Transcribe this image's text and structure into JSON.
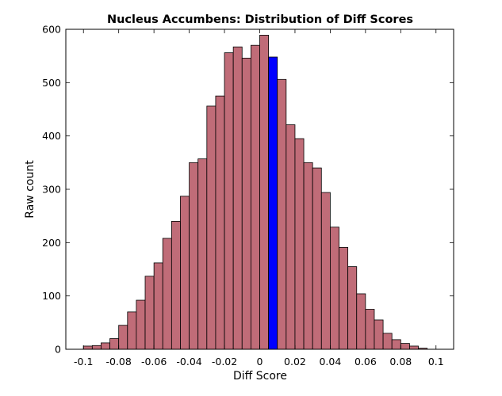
{
  "chart_data": {
    "type": "bar",
    "title": "Nucleus Accumbens: Distribution of Diff Scores",
    "xlabel": "Diff Score",
    "ylabel": "Raw count",
    "xlim": [
      -0.11,
      0.11
    ],
    "ylim": [
      0,
      600
    ],
    "xticks": [
      -0.1,
      -0.08,
      -0.06,
      -0.04,
      -0.02,
      0,
      0.02,
      0.04,
      0.06,
      0.08,
      0.1
    ],
    "xtick_labels": [
      "-0.1",
      "-0.08",
      "-0.06",
      "-0.04",
      "-0.02",
      "0",
      "0.02",
      "0.04",
      "0.06",
      "0.08",
      "0.1"
    ],
    "yticks": [
      0,
      100,
      200,
      300,
      400,
      500,
      600
    ],
    "ytick_labels": [
      "0",
      "100",
      "200",
      "300",
      "400",
      "500",
      "600"
    ],
    "bin_width": 0.005,
    "bin_starts": [
      -0.1,
      -0.095,
      -0.09,
      -0.085,
      -0.08,
      -0.075,
      -0.07,
      -0.065,
      -0.06,
      -0.055,
      -0.05,
      -0.045,
      -0.04,
      -0.035,
      -0.03,
      -0.025,
      -0.02,
      -0.015,
      -0.01,
      -0.005,
      0.0,
      0.005,
      0.01,
      0.015,
      0.02,
      0.025,
      0.03,
      0.035,
      0.04,
      0.045,
      0.05,
      0.055,
      0.06,
      0.065,
      0.07,
      0.075,
      0.08,
      0.085,
      0.09,
      0.095
    ],
    "values": [
      6,
      7,
      12,
      20,
      45,
      70,
      92,
      137,
      162,
      208,
      240,
      287,
      350,
      357,
      456,
      475,
      556,
      567,
      546,
      570,
      589,
      548,
      506,
      421,
      395,
      350,
      340,
      294,
      229,
      191,
      155,
      104,
      75,
      55,
      30,
      18,
      11,
      6,
      2,
      0
    ],
    "highlight_index": 21,
    "colors": {
      "bar": "#c06c78",
      "highlight": "#0000ff",
      "edge": "#000000"
    },
    "grid": false,
    "legend": "none"
  }
}
